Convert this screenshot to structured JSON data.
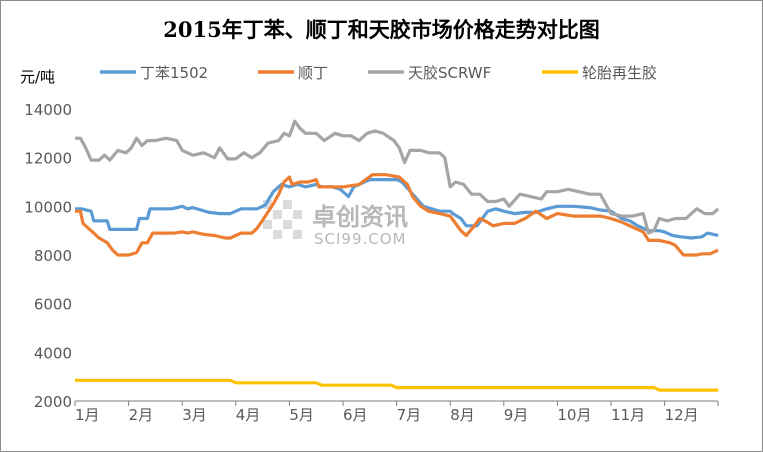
{
  "chart_data": {
    "type": "line",
    "title": "2015年丁苯、顺丁和天胶市场价格走势对比图",
    "ylabel": "元/吨",
    "xlabel": "",
    "ylim": [
      2000,
      14000
    ],
    "yticks": [
      "2000",
      "4000",
      "6000",
      "8000",
      "10000",
      "12000",
      "14000"
    ],
    "categories": [
      "1月",
      "2月",
      "3月",
      "4月",
      "5月",
      "6月",
      "7月",
      "8月",
      "9月",
      "10月",
      "11月",
      "12月"
    ],
    "legend_position": "top",
    "grid": false,
    "watermark": {
      "cn": "卓创资讯",
      "en": "SCI99.COM"
    },
    "series": [
      {
        "name": "丁苯1502",
        "color": "#5b9bd5",
        "points": [
          [
            0,
            9900
          ],
          [
            0.12,
            9900
          ],
          [
            0.3,
            9800
          ],
          [
            0.35,
            9400
          ],
          [
            0.6,
            9400
          ],
          [
            0.65,
            9050
          ],
          [
            0.9,
            9050
          ],
          [
            1.15,
            9050
          ],
          [
            1.2,
            9500
          ],
          [
            1.35,
            9500
          ],
          [
            1.4,
            9900
          ],
          [
            1.6,
            9900
          ],
          [
            1.8,
            9900
          ],
          [
            2.0,
            10000
          ],
          [
            2.1,
            9900
          ],
          [
            2.2,
            9950
          ],
          [
            2.5,
            9750
          ],
          [
            2.7,
            9700
          ],
          [
            2.9,
            9700
          ],
          [
            3.0,
            9800
          ],
          [
            3.1,
            9900
          ],
          [
            3.4,
            9900
          ],
          [
            3.55,
            10050
          ],
          [
            3.7,
            10600
          ],
          [
            3.85,
            10900
          ],
          [
            4.0,
            10800
          ],
          [
            4.15,
            10900
          ],
          [
            4.3,
            10800
          ],
          [
            4.5,
            10900
          ],
          [
            4.6,
            10800
          ],
          [
            4.8,
            10800
          ],
          [
            4.95,
            10700
          ],
          [
            5.1,
            10400
          ],
          [
            5.2,
            10800
          ],
          [
            5.3,
            10900
          ],
          [
            5.5,
            11100
          ],
          [
            5.7,
            11100
          ],
          [
            6.0,
            11100
          ],
          [
            6.1,
            11000
          ],
          [
            6.3,
            10500
          ],
          [
            6.5,
            10000
          ],
          [
            6.8,
            9800
          ],
          [
            7.0,
            9800
          ],
          [
            7.05,
            9700
          ],
          [
            7.2,
            9500
          ],
          [
            7.3,
            9200
          ],
          [
            7.5,
            9200
          ],
          [
            7.7,
            9800
          ],
          [
            7.85,
            9900
          ],
          [
            8.0,
            9800
          ],
          [
            8.2,
            9700
          ],
          [
            8.4,
            9750
          ],
          [
            8.6,
            9750
          ],
          [
            8.8,
            9900
          ],
          [
            9.0,
            10000
          ],
          [
            9.3,
            10000
          ],
          [
            9.6,
            9950
          ],
          [
            9.8,
            9850
          ],
          [
            10.0,
            9800
          ],
          [
            10.2,
            9500
          ],
          [
            10.35,
            9400
          ],
          [
            10.5,
            9200
          ],
          [
            10.7,
            9000
          ],
          [
            10.9,
            9000
          ],
          [
            11.0,
            8950
          ],
          [
            11.15,
            8800
          ],
          [
            11.3,
            8750
          ],
          [
            11.5,
            8700
          ],
          [
            11.7,
            8750
          ],
          [
            11.8,
            8900
          ],
          [
            12.0,
            8800
          ]
        ]
      },
      {
        "name": "顺丁",
        "color": "#ed7d31",
        "points": [
          [
            0,
            9800
          ],
          [
            0.1,
            9800
          ],
          [
            0.15,
            9300
          ],
          [
            0.3,
            9000
          ],
          [
            0.45,
            8700
          ],
          [
            0.6,
            8500
          ],
          [
            0.7,
            8200
          ],
          [
            0.8,
            8000
          ],
          [
            1.0,
            8000
          ],
          [
            1.15,
            8100
          ],
          [
            1.25,
            8500
          ],
          [
            1.35,
            8500
          ],
          [
            1.45,
            8900
          ],
          [
            1.65,
            8900
          ],
          [
            1.85,
            8900
          ],
          [
            2.0,
            8950
          ],
          [
            2.1,
            8900
          ],
          [
            2.2,
            8950
          ],
          [
            2.4,
            8850
          ],
          [
            2.6,
            8800
          ],
          [
            2.8,
            8700
          ],
          [
            2.9,
            8700
          ],
          [
            3.0,
            8800
          ],
          [
            3.1,
            8900
          ],
          [
            3.3,
            8900
          ],
          [
            3.4,
            9100
          ],
          [
            3.55,
            9600
          ],
          [
            3.7,
            10100
          ],
          [
            3.8,
            10500
          ],
          [
            3.9,
            11000
          ],
          [
            4.0,
            11200
          ],
          [
            4.05,
            10900
          ],
          [
            4.2,
            11000
          ],
          [
            4.35,
            11000
          ],
          [
            4.5,
            11100
          ],
          [
            4.55,
            10800
          ],
          [
            4.75,
            10800
          ],
          [
            5.0,
            10800
          ],
          [
            5.3,
            10900
          ],
          [
            5.55,
            11300
          ],
          [
            5.8,
            11300
          ],
          [
            6.05,
            11200
          ],
          [
            6.2,
            10900
          ],
          [
            6.3,
            10400
          ],
          [
            6.45,
            10000
          ],
          [
            6.6,
            9800
          ],
          [
            6.8,
            9700
          ],
          [
            7.0,
            9600
          ],
          [
            7.1,
            9300
          ],
          [
            7.2,
            9000
          ],
          [
            7.3,
            8800
          ],
          [
            7.45,
            9200
          ],
          [
            7.55,
            9500
          ],
          [
            7.65,
            9400
          ],
          [
            7.8,
            9200
          ],
          [
            8.0,
            9300
          ],
          [
            8.2,
            9300
          ],
          [
            8.4,
            9500
          ],
          [
            8.6,
            9800
          ],
          [
            8.8,
            9500
          ],
          [
            9.0,
            9700
          ],
          [
            9.3,
            9600
          ],
          [
            9.6,
            9600
          ],
          [
            9.8,
            9600
          ],
          [
            10.0,
            9500
          ],
          [
            10.2,
            9350
          ],
          [
            10.4,
            9150
          ],
          [
            10.6,
            8950
          ],
          [
            10.7,
            8600
          ],
          [
            10.9,
            8600
          ],
          [
            11.1,
            8500
          ],
          [
            11.2,
            8400
          ],
          [
            11.35,
            8000
          ],
          [
            11.6,
            8000
          ],
          [
            11.7,
            8050
          ],
          [
            11.85,
            8050
          ],
          [
            12.0,
            8200
          ]
        ]
      },
      {
        "name": "天胶SCRWF",
        "color": "#a5a5a5",
        "points": [
          [
            0,
            12800
          ],
          [
            0.1,
            12800
          ],
          [
            0.2,
            12400
          ],
          [
            0.3,
            11900
          ],
          [
            0.45,
            11900
          ],
          [
            0.55,
            12100
          ],
          [
            0.65,
            11900
          ],
          [
            0.8,
            12300
          ],
          [
            0.95,
            12200
          ],
          [
            1.05,
            12400
          ],
          [
            1.15,
            12800
          ],
          [
            1.25,
            12500
          ],
          [
            1.35,
            12700
          ],
          [
            1.5,
            12700
          ],
          [
            1.7,
            12800
          ],
          [
            1.9,
            12700
          ],
          [
            2.0,
            12300
          ],
          [
            2.2,
            12100
          ],
          [
            2.4,
            12200
          ],
          [
            2.6,
            12000
          ],
          [
            2.7,
            12400
          ],
          [
            2.85,
            11950
          ],
          [
            3.0,
            11950
          ],
          [
            3.15,
            12200
          ],
          [
            3.3,
            12000
          ],
          [
            3.45,
            12200
          ],
          [
            3.6,
            12600
          ],
          [
            3.8,
            12700
          ],
          [
            3.9,
            13000
          ],
          [
            4.0,
            12900
          ],
          [
            4.1,
            13500
          ],
          [
            4.2,
            13200
          ],
          [
            4.3,
            13000
          ],
          [
            4.5,
            13000
          ],
          [
            4.65,
            12700
          ],
          [
            4.85,
            13000
          ],
          [
            5.0,
            12900
          ],
          [
            5.15,
            12900
          ],
          [
            5.3,
            12700
          ],
          [
            5.45,
            13000
          ],
          [
            5.6,
            13100
          ],
          [
            5.75,
            13000
          ],
          [
            5.95,
            12700
          ],
          [
            6.05,
            12400
          ],
          [
            6.15,
            11800
          ],
          [
            6.25,
            12300
          ],
          [
            6.45,
            12300
          ],
          [
            6.6,
            12200
          ],
          [
            6.8,
            12200
          ],
          [
            6.9,
            12000
          ],
          [
            7.0,
            10800
          ],
          [
            7.1,
            11000
          ],
          [
            7.25,
            10900
          ],
          [
            7.4,
            10500
          ],
          [
            7.55,
            10500
          ],
          [
            7.7,
            10200
          ],
          [
            7.85,
            10200
          ],
          [
            8.0,
            10300
          ],
          [
            8.1,
            10000
          ],
          [
            8.3,
            10500
          ],
          [
            8.5,
            10400
          ],
          [
            8.7,
            10300
          ],
          [
            8.8,
            10600
          ],
          [
            9.0,
            10600
          ],
          [
            9.2,
            10700
          ],
          [
            9.4,
            10600
          ],
          [
            9.6,
            10500
          ],
          [
            9.8,
            10500
          ],
          [
            10.0,
            9700
          ],
          [
            10.2,
            9600
          ],
          [
            10.4,
            9600
          ],
          [
            10.6,
            9700
          ],
          [
            10.7,
            8900
          ],
          [
            10.8,
            9000
          ],
          [
            10.9,
            9500
          ],
          [
            11.05,
            9400
          ],
          [
            11.2,
            9500
          ],
          [
            11.4,
            9500
          ],
          [
            11.5,
            9700
          ],
          [
            11.6,
            9900
          ],
          [
            11.75,
            9700
          ],
          [
            11.9,
            9700
          ],
          [
            12.0,
            9900
          ]
        ]
      },
      {
        "name": "轮胎再生胶",
        "color": "#ffc000",
        "points": [
          [
            0,
            2850
          ],
          [
            2.9,
            2850
          ],
          [
            3.0,
            2750
          ],
          [
            4.5,
            2750
          ],
          [
            4.6,
            2650
          ],
          [
            5.9,
            2650
          ],
          [
            6.0,
            2550
          ],
          [
            10.8,
            2550
          ],
          [
            10.9,
            2450
          ],
          [
            12.0,
            2450
          ]
        ]
      }
    ]
  }
}
